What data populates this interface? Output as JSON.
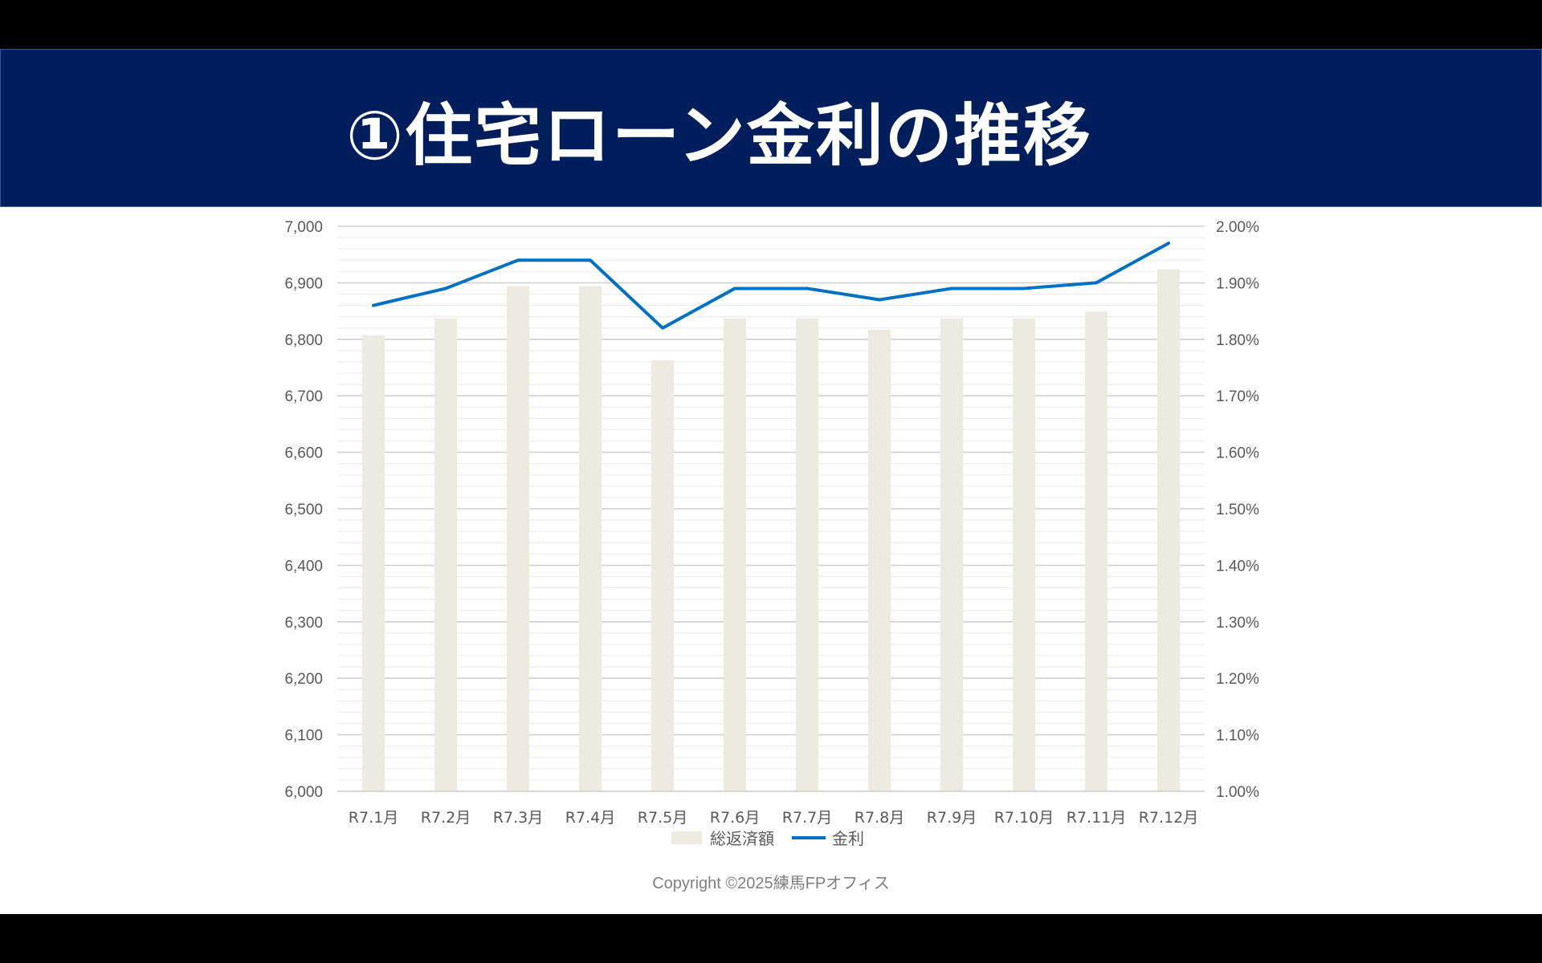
{
  "title": "①住宅ローン金利の推移",
  "copyright": "Copyright ©2025練馬FPオフィス",
  "chart_data": {
    "type": "bar",
    "categories": [
      "R7.1月",
      "R7.2月",
      "R7.3月",
      "R7.4月",
      "R7.5月",
      "R7.6月",
      "R7.7月",
      "R7.8月",
      "R7.9月",
      "R7.10月",
      "R7.11月",
      "R7.12月"
    ],
    "series": [
      {
        "name": "総返済額",
        "type": "bar",
        "axis": "left",
        "color": "#edebe0",
        "values": [
          6807,
          6837,
          6894,
          6894,
          6763,
          6837,
          6837,
          6817,
          6837,
          6837,
          6849,
          6924
        ]
      },
      {
        "name": "金利",
        "type": "line",
        "axis": "right",
        "color": "#0070c0",
        "values": [
          1.86,
          1.89,
          1.94,
          1.94,
          1.82,
          1.89,
          1.89,
          1.87,
          1.89,
          1.89,
          1.9,
          1.97
        ]
      }
    ],
    "y_left": {
      "min": 6000,
      "max": 7000,
      "ticks": [
        "6,000",
        "6,100",
        "6,200",
        "6,300",
        "6,400",
        "6,500",
        "6,600",
        "6,700",
        "6,800",
        "6,900",
        "7,000"
      ]
    },
    "y_right": {
      "min": 1.0,
      "max": 2.0,
      "ticks": [
        "1.00%",
        "1.10%",
        "1.20%",
        "1.30%",
        "1.40%",
        "1.50%",
        "1.60%",
        "1.70%",
        "1.80%",
        "1.90%",
        "2.00%"
      ]
    },
    "grid": true,
    "legend": "bottom"
  }
}
